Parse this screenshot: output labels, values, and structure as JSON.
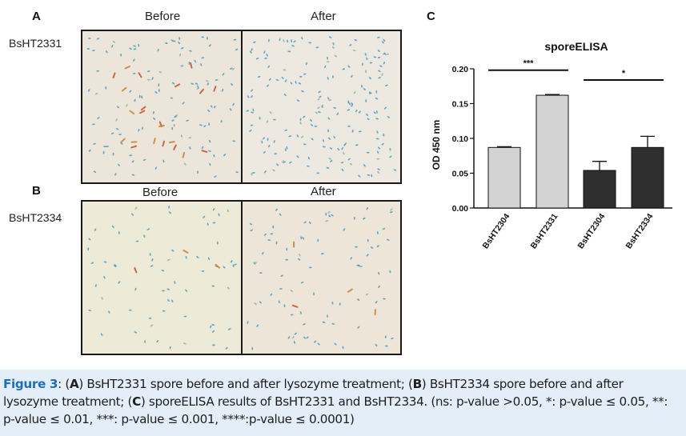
{
  "panels": {
    "A": {
      "letter": "A",
      "before_label": "Before",
      "after_label": "After",
      "strain": "BsHT2331"
    },
    "B": {
      "letter": "B",
      "before_label": "Before",
      "after_label": "After",
      "strain": "BsHT2334"
    },
    "C": {
      "letter": "C"
    }
  },
  "colors": {
    "spore_blue": "#4a9cc9",
    "spore_red": "#c45a3a",
    "bar_light": "#d3d3d3",
    "bar_dark": "#2f2f2f",
    "caption_bg": "#e3eef8",
    "caption_head": "#1f6fb8"
  },
  "chart_data": {
    "type": "bar",
    "title": "sporeELISA",
    "ylabel": "OD 450 nm",
    "xlabel": "",
    "ylim": [
      0,
      0.2
    ],
    "yticks": [
      "0.00",
      "0.05",
      "0.10",
      "0.15",
      "0.20"
    ],
    "categories": [
      "BsHT2304",
      "BsHT2331",
      "BsHT2304",
      "BsHT2334"
    ],
    "values": [
      0.087,
      0.162,
      0.054,
      0.087
    ],
    "errors": [
      0.001,
      0.001,
      0.013,
      0.016
    ],
    "bar_colors": [
      "#d3d3d3",
      "#d3d3d3",
      "#2f2f2f",
      "#2f2f2f"
    ],
    "significance": [
      {
        "pair": [
          0,
          1
        ],
        "label": "***"
      },
      {
        "pair": [
          2,
          3
        ],
        "label": "*"
      }
    ],
    "grid": false
  },
  "caption": {
    "head": "Figure 3",
    "p1": ": (",
    "a": "A",
    "p2": ") BsHT2331 spore before and after lysozyme treatment; (",
    "b": "B",
    "p3": ") BsHT2334 spore before and after lysozyme treatment; (",
    "c": "C",
    "p4": ") sporeELISA results of BsHT2331 and BsHT2334. (ns: p-value >0.05, *: p-value ≤ 0.05, **: p-value ≤ 0.01, ***: p-value ≤ 0.001, ****:p-value ≤ 0.0001)"
  }
}
